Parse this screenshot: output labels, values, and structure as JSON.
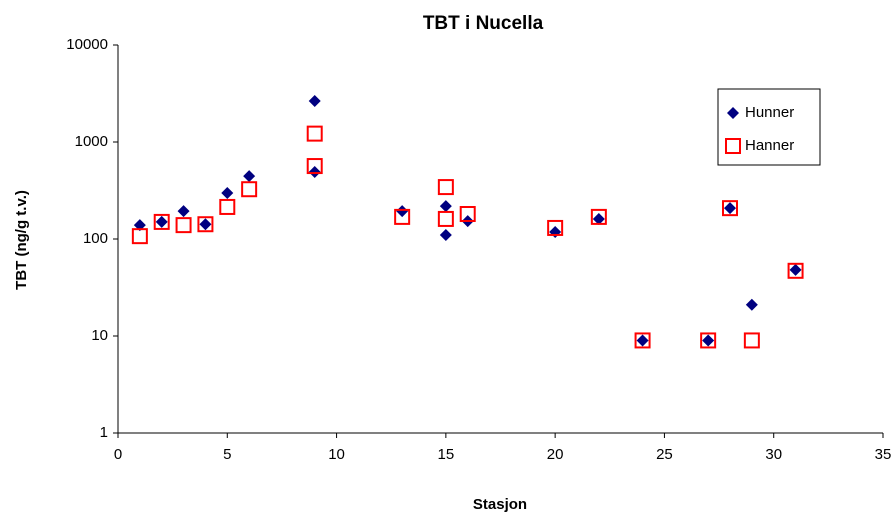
{
  "chart_data": {
    "type": "scatter",
    "title": "TBT i Nucella",
    "x_label": "Stasjon",
    "y_label": "TBT (ng/g t.v.)",
    "log_y": true,
    "grid": false,
    "legend": "upper right",
    "xlim": [
      0,
      35
    ],
    "xticks": [
      0,
      5,
      10,
      15,
      20,
      25,
      30,
      35
    ],
    "ylim": [
      1,
      10000
    ],
    "yticks": [
      1,
      10,
      100,
      1000,
      10000
    ],
    "series": [
      {
        "name": "Hunner",
        "color": "#000080",
        "marker": "diamond",
        "x": [
          1,
          2,
          3,
          4,
          5,
          6,
          9,
          9,
          13,
          15,
          15,
          16,
          20,
          22,
          24,
          27,
          28,
          29,
          31
        ],
        "values": [
          139,
          150,
          194,
          142,
          298,
          445,
          2650,
          490,
          194,
          218,
          110,
          153,
          118,
          161,
          9,
          9,
          208,
          21,
          48
        ]
      },
      {
        "name": "Hanner",
        "color": "#ff0000",
        "marker": "square",
        "x": [
          1,
          2,
          3,
          4,
          5,
          6,
          9,
          9,
          13,
          15,
          15,
          16,
          20,
          22,
          24,
          27,
          28,
          29,
          31
        ],
        "values": [
          107,
          150,
          139,
          142,
          214,
          326,
          1220,
          565,
          169,
          343,
          161,
          181,
          130,
          169,
          9,
          9,
          208,
          9,
          47
        ]
      }
    ]
  }
}
